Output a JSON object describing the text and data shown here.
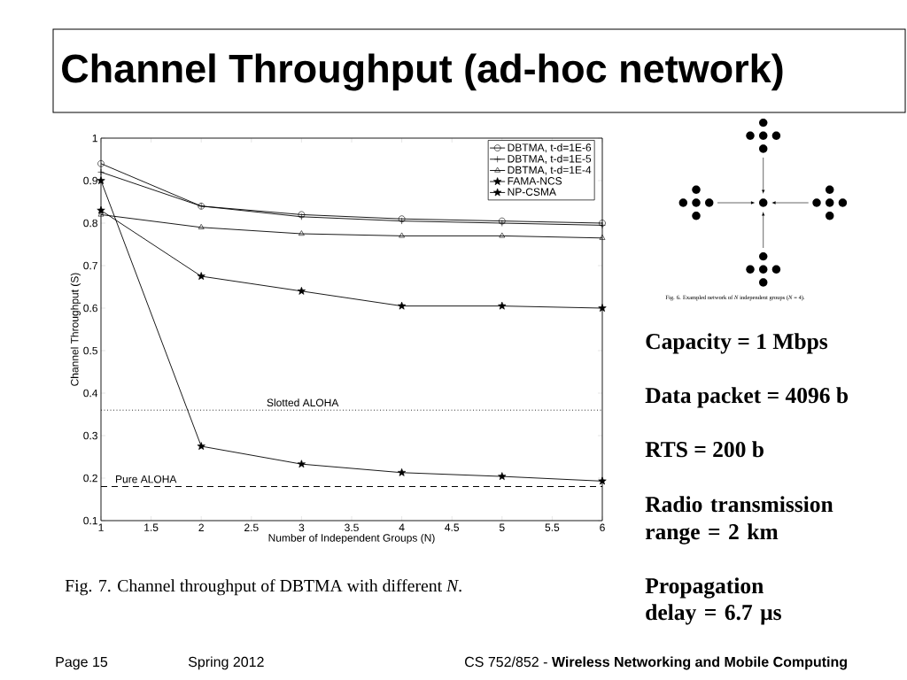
{
  "chart_data": {
    "type": "line",
    "title": "Channel Throughput (ad-hoc network)",
    "xlabel": "Number of Independent Groups (N)",
    "ylabel": "Channel Throughput (S)",
    "x": [
      1,
      2,
      3,
      4,
      5,
      6
    ],
    "series": [
      {
        "name": "DBTMA, t-d=1E-6",
        "color": "#000000",
        "marker": "circle",
        "values": [
          0.94,
          0.84,
          0.82,
          0.81,
          0.805,
          0.8
        ]
      },
      {
        "name": "DBTMA, t-d=1E-5",
        "color": "#000000",
        "marker": "cross",
        "values": [
          0.92,
          0.84,
          0.815,
          0.805,
          0.8,
          0.795
        ]
      },
      {
        "name": "DBTMA, t-d=1E-4",
        "color": "#000000",
        "marker": "triangle",
        "values": [
          0.82,
          0.79,
          0.775,
          0.77,
          0.77,
          0.765
        ]
      },
      {
        "name": "FAMA-NCS",
        "color": "#000000",
        "marker": "star",
        "values": [
          0.83,
          0.675,
          0.64,
          0.605,
          0.605,
          0.6
        ]
      },
      {
        "name": "NP-CSMA",
        "color": "#000000",
        "marker": "star",
        "values": [
          0.9,
          0.275,
          0.233,
          0.213,
          0.204,
          0.193
        ]
      }
    ],
    "xlim": [
      1,
      6
    ],
    "ylim": [
      0.1,
      1
    ],
    "xticks": [
      1,
      1.5,
      2,
      2.5,
      3,
      3.5,
      4,
      4.5,
      5,
      5.5,
      6
    ],
    "yticks": [
      0.1,
      0.2,
      0.3,
      0.4,
      0.5,
      0.6,
      0.7,
      0.8,
      0.9,
      1
    ],
    "ref_lines": [
      {
        "axis": "y",
        "value": 0.36,
        "label": "Slotted ALOHA",
        "color": "#000000",
        "line_style": "dotted"
      },
      {
        "axis": "y",
        "value": 0.18,
        "label": "Pure ALOHA",
        "color": "#000000",
        "line_style": "dashed"
      }
    ],
    "legend": "top right",
    "annotations": [
      "Fig. 7. Channel throughput of DBTMA with different *N*.",
      "Fig. 6. Exampled network of *N* independent groups (*N* = 4).",
      "Capacity = 1 Mbps",
      "Data packet = 4096 b",
      "RTS = 200 b",
      "Radio transmission range = 2 km",
      "Propagation delay = 6.7 μs",
      "Page 15",
      "Spring 2012",
      "CS 752/852 - **Wireless Networking and Mobile Computing**"
    ]
  }
}
